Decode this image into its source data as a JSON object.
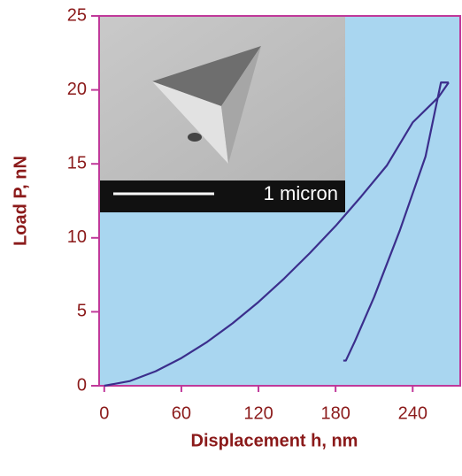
{
  "chart_data": {
    "type": "line",
    "x_label": "Displacement h, nm",
    "y_label": "Load P, nN",
    "inset_label": "1 micron",
    "xlim": [
      -4,
      277
    ],
    "ylim": [
      0,
      25
    ],
    "xticks": [
      0,
      60,
      120,
      180,
      240
    ],
    "yticks": [
      0,
      5,
      10,
      15,
      20,
      25
    ],
    "background": "#a9d6f0",
    "frame_color": "#c0399a",
    "series": [
      {
        "color": "#3b2e8c",
        "x": [
          0,
          20,
          40,
          60,
          80,
          100,
          120,
          140,
          160,
          180,
          200,
          220,
          240,
          260,
          268
        ],
        "values": [
          0,
          0.32,
          0.98,
          1.87,
          2.96,
          4.23,
          5.66,
          7.25,
          8.97,
          10.8,
          12.8,
          14.9,
          17.8,
          19.5,
          20.5
        ]
      },
      {
        "color": "#3b2e8c",
        "x": [
          268,
          262,
          250,
          230,
          210,
          195,
          188,
          186
        ],
        "values": [
          20.5,
          20.5,
          15.5,
          10.5,
          6,
          3,
          1.7,
          1.7
        ]
      }
    ]
  }
}
